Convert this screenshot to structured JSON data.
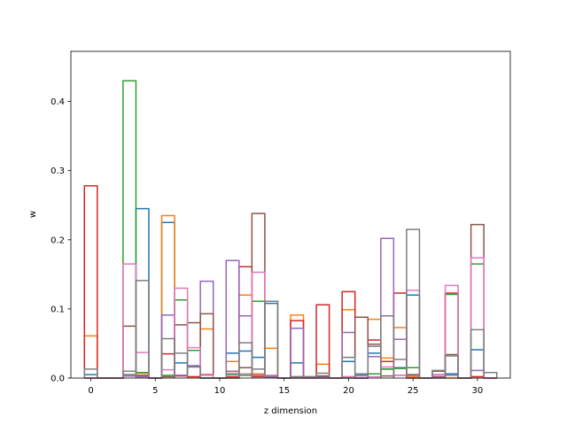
{
  "chart_data": {
    "type": "bar",
    "style": "step-histogram",
    "xlabel": "z dimension",
    "ylabel": "w",
    "xlim": [
      -1.55,
      32.55
    ],
    "ylim": [
      0,
      0.4725
    ],
    "xticks": [
      0,
      5,
      10,
      15,
      20,
      25,
      30
    ],
    "yticks": [
      0.0,
      0.1,
      0.2,
      0.3,
      0.4
    ],
    "ytick_labels": [
      "0.0",
      "0.1",
      "0.2",
      "0.3",
      "0.4"
    ],
    "bin_width": 1,
    "x": [
      0,
      1,
      2,
      3,
      4,
      5,
      6,
      7,
      8,
      9,
      10,
      11,
      12,
      13,
      14,
      15,
      16,
      17,
      18,
      19,
      20,
      21,
      22,
      23,
      24,
      25,
      26,
      27,
      28,
      29,
      30,
      31
    ],
    "series": [
      {
        "color": "#1f77b4",
        "values": [
          0.005,
          0,
          0,
          0.005,
          0.245,
          0,
          0.225,
          0.022,
          0.017,
          0,
          0,
          0.036,
          0.039,
          0.03,
          0.108,
          0,
          0.022,
          0,
          0.002,
          0,
          0.024,
          0.004,
          0.036,
          0.013,
          0.015,
          0.12,
          0,
          0.005,
          0.006,
          0,
          0.041,
          0
        ]
      },
      {
        "color": "#ff7f0e",
        "values": [
          0.061,
          0,
          0,
          0.004,
          0.007,
          0,
          0.235,
          0.004,
          0.002,
          0.071,
          0,
          0.024,
          0.12,
          0.006,
          0.043,
          0,
          0.091,
          0,
          0.02,
          0,
          0.099,
          0,
          0.085,
          0.029,
          0.073,
          0.002,
          0,
          0.002,
          0,
          0,
          0.002,
          0
        ]
      },
      {
        "color": "#2ca02c",
        "values": [
          0,
          0,
          0,
          0.43,
          0.008,
          0,
          0.004,
          0.113,
          0.04,
          0,
          0,
          0.005,
          0.004,
          0.111,
          0.003,
          0,
          0,
          0,
          0,
          0,
          0,
          0,
          0.006,
          0.013,
          0.014,
          0.015,
          0,
          0,
          0.121,
          0,
          0.165,
          0
        ]
      },
      {
        "color": "#d62728",
        "values": [
          0.278,
          0,
          0,
          0.003,
          0.002,
          0,
          0.035,
          0.003,
          0.002,
          0.005,
          0,
          0.002,
          0.161,
          0.002,
          0.001,
          0,
          0.083,
          0.001,
          0.106,
          0,
          0.125,
          0,
          0.055,
          0.024,
          0.123,
          0,
          0,
          0.002,
          0.123,
          0,
          0.002,
          0
        ]
      },
      {
        "color": "#9467bd",
        "values": [
          0,
          0,
          0,
          0.003,
          0.002,
          0,
          0.091,
          0.004,
          0.018,
          0.14,
          0,
          0.17,
          0.09,
          0.004,
          0.001,
          0,
          0.072,
          0.001,
          0.001,
          0,
          0.066,
          0,
          0.031,
          0.202,
          0.056,
          0.004,
          0,
          0.001,
          0.004,
          0,
          0.011,
          0
        ]
      },
      {
        "color": "#8c564b",
        "values": [
          0,
          0,
          0,
          0.075,
          0.004,
          0,
          0.002,
          0.077,
          0.08,
          0.093,
          0,
          0,
          0.015,
          0.238,
          0.003,
          0,
          0.002,
          0.002,
          0.003,
          0,
          0.002,
          0.088,
          0.049,
          0.003,
          0.004,
          0.005,
          0,
          0.01,
          0.034,
          0,
          0.222,
          0
        ]
      },
      {
        "color": "#e377c2",
        "values": [
          0,
          0,
          0,
          0.165,
          0.037,
          0,
          0.012,
          0.13,
          0.044,
          0.004,
          0,
          0.007,
          0.006,
          0.153,
          0.004,
          0,
          0,
          0,
          0,
          0,
          0.002,
          0.001,
          0.002,
          0.016,
          0.004,
          0.127,
          0,
          0.005,
          0.134,
          0,
          0.174,
          0
        ]
      },
      {
        "color": "#7f7f7f",
        "values": [
          0.013,
          0,
          0,
          0.01,
          0.141,
          0,
          0.057,
          0.036,
          0.016,
          0,
          0,
          0.01,
          0.051,
          0.013,
          0.111,
          0,
          0.002,
          0.002,
          0.007,
          0,
          0.03,
          0.006,
          0.046,
          0.09,
          0.027,
          0.215,
          0,
          0.011,
          0.032,
          0,
          0.07,
          0.008
        ]
      }
    ]
  }
}
